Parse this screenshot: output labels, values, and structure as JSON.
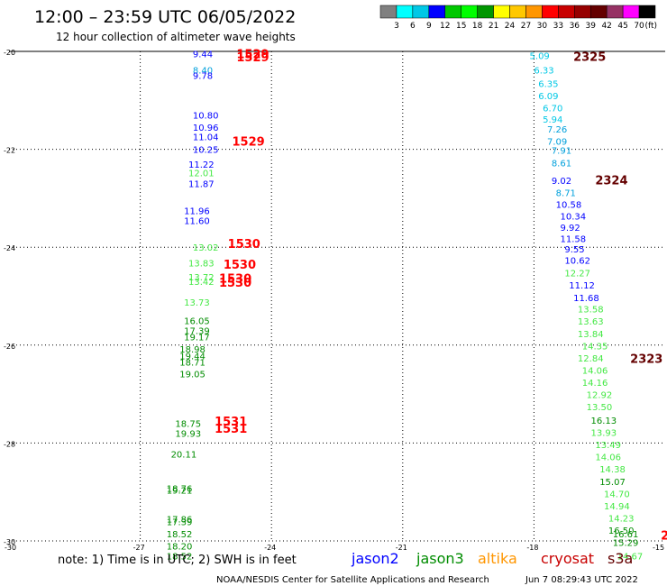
{
  "header": {
    "title": "12:00 – 23:59 UTC 06/05/2022",
    "subtitle": "12 hour collection of altimeter wave heights"
  },
  "colorbar": {
    "labels": [
      "3",
      "6",
      "9",
      "12",
      "15",
      "18",
      "21",
      "24",
      "27",
      "30",
      "33",
      "36",
      "39",
      "42",
      "45",
      "70",
      "(ft)"
    ],
    "colors": [
      "#808080",
      "#00ffff",
      "#00c8e6",
      "#0000ff",
      "#00c800",
      "#00ff00",
      "#009600",
      "#ffff00",
      "#ffc800",
      "#ff9600",
      "#ff0000",
      "#c80000",
      "#960000",
      "#640000",
      "#963264",
      "#ff00ff",
      "#000000"
    ]
  },
  "footer": {
    "note": "note: 1) Time is in UTC; 2) SWH is in feet",
    "satellites": [
      {
        "name": "jason2",
        "color": "#0000ff"
      },
      {
        "name": "jason3",
        "color": "#008c00"
      },
      {
        "name": "altika",
        "color": "#ff9600"
      },
      {
        "name": "cryosat",
        "color": "#c80000"
      },
      {
        "name": "s3a",
        "color": "#640000"
      }
    ],
    "credit": "NOAA/NESDIS Center for Satellite Applications and Research",
    "timestamp": "Jun  7 08:29:43 UTC 2022"
  },
  "chart_data": {
    "type": "scatter",
    "xlim": [
      -30,
      -15
    ],
    "ylim": [
      -30,
      -20
    ],
    "x_ticks": [
      "-30",
      "-27",
      "-24",
      "-21",
      "-18",
      "-15"
    ],
    "y_ticks": [
      "-20",
      "-22",
      "-24",
      "-26",
      "-28",
      "-30"
    ],
    "grid": true,
    "track_a": [
      {
        "lon": -25.8,
        "lat": -20.05,
        "v": "9.44",
        "c": "#0000ff"
      },
      {
        "lon": -25.8,
        "lat": -20.38,
        "v": "8.40",
        "c": "#00a0dc"
      },
      {
        "lon": -25.8,
        "lat": -20.49,
        "v": "9.78",
        "c": "#0000ff"
      },
      {
        "lon": -25.8,
        "lat": -21.3,
        "v": "10.80",
        "c": "#0000ff"
      },
      {
        "lon": -25.8,
        "lat": -21.55,
        "v": "10.96",
        "c": "#0000ff"
      },
      {
        "lon": -25.8,
        "lat": -21.74,
        "v": "11.04",
        "c": "#0000ff"
      },
      {
        "lon": -25.8,
        "lat": -22.0,
        "v": "10.25",
        "c": "#0000ff"
      },
      {
        "lon": -25.9,
        "lat": -22.3,
        "v": "11.22",
        "c": "#0000ff"
      },
      {
        "lon": -25.9,
        "lat": -22.48,
        "v": "12.01",
        "c": "#44e844"
      },
      {
        "lon": -25.9,
        "lat": -22.7,
        "v": "11.87",
        "c": "#0000ff"
      },
      {
        "lon": -26.0,
        "lat": -23.25,
        "v": "11.96",
        "c": "#0000ff"
      },
      {
        "lon": -26.0,
        "lat": -23.45,
        "v": "11.60",
        "c": "#0000ff"
      },
      {
        "lon": -25.8,
        "lat": -24.0,
        "v": "13.02",
        "c": "#44e844"
      },
      {
        "lon": -25.9,
        "lat": -24.32,
        "v": "13.83",
        "c": "#44e844"
      },
      {
        "lon": -25.9,
        "lat": -24.6,
        "v": "13.72",
        "c": "#44e844"
      },
      {
        "lon": -25.9,
        "lat": -24.7,
        "v": "13.42",
        "c": "#44e844"
      },
      {
        "lon": -26.0,
        "lat": -25.12,
        "v": "13.73",
        "c": "#44e844"
      },
      {
        "lon": -26.0,
        "lat": -25.5,
        "v": "16.05",
        "c": "#008c00"
      },
      {
        "lon": -26.0,
        "lat": -25.7,
        "v": "17.39",
        "c": "#008c00"
      },
      {
        "lon": -26.0,
        "lat": -25.83,
        "v": "19.17",
        "c": "#008c00"
      },
      {
        "lon": -26.1,
        "lat": -26.08,
        "v": "18.98",
        "c": "#008c00"
      },
      {
        "lon": -26.1,
        "lat": -26.22,
        "v": "19.44",
        "c": "#008c00"
      },
      {
        "lon": -26.1,
        "lat": -26.34,
        "v": "18.71",
        "c": "#008c00"
      },
      {
        "lon": -26.1,
        "lat": -26.58,
        "v": "19.05",
        "c": "#008c00"
      },
      {
        "lon": -26.2,
        "lat": -27.6,
        "v": "18.75",
        "c": "#008c00"
      },
      {
        "lon": -26.2,
        "lat": -27.8,
        "v": "19.93",
        "c": "#008c00"
      },
      {
        "lon": -26.3,
        "lat": -28.22,
        "v": "20.11",
        "c": "#008c00"
      },
      {
        "lon": -26.4,
        "lat": -28.92,
        "v": "18.76",
        "c": "#008c00"
      },
      {
        "lon": -26.4,
        "lat": -28.96,
        "v": "19.21",
        "c": "#008c00"
      },
      {
        "lon": -26.4,
        "lat": -29.55,
        "v": "17.86",
        "c": "#008c00"
      },
      {
        "lon": -26.4,
        "lat": -29.6,
        "v": "17.39",
        "c": "#008c00"
      },
      {
        "lon": -26.4,
        "lat": -29.85,
        "v": "18.52",
        "c": "#008c00"
      },
      {
        "lon": -26.4,
        "lat": -30.1,
        "v": "18.20",
        "c": "#008c00"
      },
      {
        "lon": -26.4,
        "lat": -30.3,
        "v": "18.52",
        "c": "#008c00"
      }
    ],
    "track_a_times": [
      {
        "lon": -24.8,
        "lat": -20.05,
        "t": "1529",
        "c": "#ff0000"
      },
      {
        "lon": -24.8,
        "lat": -20.11,
        "t": "1529",
        "c": "#ff0000"
      },
      {
        "lon": -24.9,
        "lat": -21.83,
        "t": "1529",
        "c": "#ff0000"
      },
      {
        "lon": -25.0,
        "lat": -23.92,
        "t": "1530",
        "c": "#ff0000"
      },
      {
        "lon": -25.1,
        "lat": -24.35,
        "t": "1530",
        "c": "#ff0000"
      },
      {
        "lon": -25.2,
        "lat": -24.63,
        "t": "1530",
        "c": "#ff0000"
      },
      {
        "lon": -25.2,
        "lat": -24.71,
        "t": "1530",
        "c": "#ff0000"
      },
      {
        "lon": -25.3,
        "lat": -27.55,
        "t": "1531",
        "c": "#ff0000"
      },
      {
        "lon": -25.3,
        "lat": -27.7,
        "t": "1531",
        "c": "#ff0000"
      }
    ],
    "track_b": [
      {
        "lon": -18.1,
        "lat": -20.08,
        "v": "5.09",
        "c": "#00c8e6"
      },
      {
        "lon": -18.0,
        "lat": -20.38,
        "v": "6.33",
        "c": "#00c8e6"
      },
      {
        "lon": -17.9,
        "lat": -20.65,
        "v": "6.35",
        "c": "#00c8e6"
      },
      {
        "lon": -17.9,
        "lat": -20.9,
        "v": "6.09",
        "c": "#00c8e6"
      },
      {
        "lon": -17.8,
        "lat": -21.15,
        "v": "6.70",
        "c": "#00c8e6"
      },
      {
        "lon": -17.8,
        "lat": -21.38,
        "v": "5.94",
        "c": "#00c8e6"
      },
      {
        "lon": -17.7,
        "lat": -21.58,
        "v": "7.26",
        "c": "#00a0dc"
      },
      {
        "lon": -17.7,
        "lat": -21.83,
        "v": "7.09",
        "c": "#00a0dc"
      },
      {
        "lon": -17.6,
        "lat": -22.02,
        "v": "7.91",
        "c": "#00a0dc"
      },
      {
        "lon": -17.6,
        "lat": -22.27,
        "v": "8.61",
        "c": "#00a0dc"
      },
      {
        "lon": -17.6,
        "lat": -22.63,
        "v": "9.02",
        "c": "#0000ff"
      },
      {
        "lon": -17.5,
        "lat": -22.88,
        "v": "8.71",
        "c": "#00a0dc"
      },
      {
        "lon": -17.5,
        "lat": -23.12,
        "v": "10.58",
        "c": "#0000ff"
      },
      {
        "lon": -17.4,
        "lat": -23.36,
        "v": "10.34",
        "c": "#0000ff"
      },
      {
        "lon": -17.4,
        "lat": -23.59,
        "v": "9.92",
        "c": "#0000ff"
      },
      {
        "lon": -17.4,
        "lat": -23.82,
        "v": "11.58",
        "c": "#0000ff"
      },
      {
        "lon": -17.3,
        "lat": -24.03,
        "v": "9.55",
        "c": "#0000ff"
      },
      {
        "lon": -17.3,
        "lat": -24.26,
        "v": "10.62",
        "c": "#0000ff"
      },
      {
        "lon": -17.3,
        "lat": -24.52,
        "v": "12.27",
        "c": "#44e844"
      },
      {
        "lon": -17.2,
        "lat": -24.77,
        "v": "11.12",
        "c": "#0000ff"
      },
      {
        "lon": -17.1,
        "lat": -25.03,
        "v": "11.68",
        "c": "#0000ff"
      },
      {
        "lon": -17.0,
        "lat": -25.26,
        "v": "13.58",
        "c": "#44e844"
      },
      {
        "lon": -17.0,
        "lat": -25.51,
        "v": "13.63",
        "c": "#44e844"
      },
      {
        "lon": -17.0,
        "lat": -25.76,
        "v": "13.84",
        "c": "#44e844"
      },
      {
        "lon": -16.9,
        "lat": -26.01,
        "v": "14.35",
        "c": "#44e844"
      },
      {
        "lon": -17.0,
        "lat": -26.26,
        "v": "12.84",
        "c": "#44e844"
      },
      {
        "lon": -16.9,
        "lat": -26.51,
        "v": "14.06",
        "c": "#44e844"
      },
      {
        "lon": -16.9,
        "lat": -26.76,
        "v": "14.16",
        "c": "#44e844"
      },
      {
        "lon": -16.8,
        "lat": -27.01,
        "v": "12.92",
        "c": "#44e844"
      },
      {
        "lon": -16.8,
        "lat": -27.26,
        "v": "13.50",
        "c": "#44e844"
      },
      {
        "lon": -16.7,
        "lat": -27.53,
        "v": "16.13",
        "c": "#008c00"
      },
      {
        "lon": -16.7,
        "lat": -27.78,
        "v": "13.93",
        "c": "#44e844"
      },
      {
        "lon": -16.6,
        "lat": -28.03,
        "v": "13.49",
        "c": "#44e844"
      },
      {
        "lon": -16.6,
        "lat": -28.28,
        "v": "14.06",
        "c": "#44e844"
      },
      {
        "lon": -16.5,
        "lat": -28.53,
        "v": "14.38",
        "c": "#44e844"
      },
      {
        "lon": -16.5,
        "lat": -28.78,
        "v": "15.07",
        "c": "#008c00"
      },
      {
        "lon": -16.4,
        "lat": -29.03,
        "v": "14.70",
        "c": "#44e844"
      },
      {
        "lon": -16.4,
        "lat": -29.28,
        "v": "14.94",
        "c": "#44e844"
      },
      {
        "lon": -16.3,
        "lat": -29.53,
        "v": "14.23",
        "c": "#44e844"
      },
      {
        "lon": -16.3,
        "lat": -29.78,
        "v": "16.50",
        "c": "#008c00"
      },
      {
        "lon": -16.2,
        "lat": -29.85,
        "v": "16.61",
        "c": "#008c00"
      },
      {
        "lon": -16.2,
        "lat": -30.03,
        "v": "15.29",
        "c": "#008c00"
      },
      {
        "lon": -16.1,
        "lat": -30.3,
        "v": "14.67",
        "c": "#44e844"
      }
    ],
    "track_b_times": [
      {
        "lon": -17.1,
        "lat": -20.1,
        "t": "2325",
        "c": "#640000"
      },
      {
        "lon": -16.6,
        "lat": -22.62,
        "t": "2324",
        "c": "#640000"
      },
      {
        "lon": -15.8,
        "lat": -26.27,
        "t": "2323",
        "c": "#640000"
      },
      {
        "lon": -15.1,
        "lat": -29.88,
        "t": "2",
        "c": "#ff0000"
      }
    ]
  }
}
